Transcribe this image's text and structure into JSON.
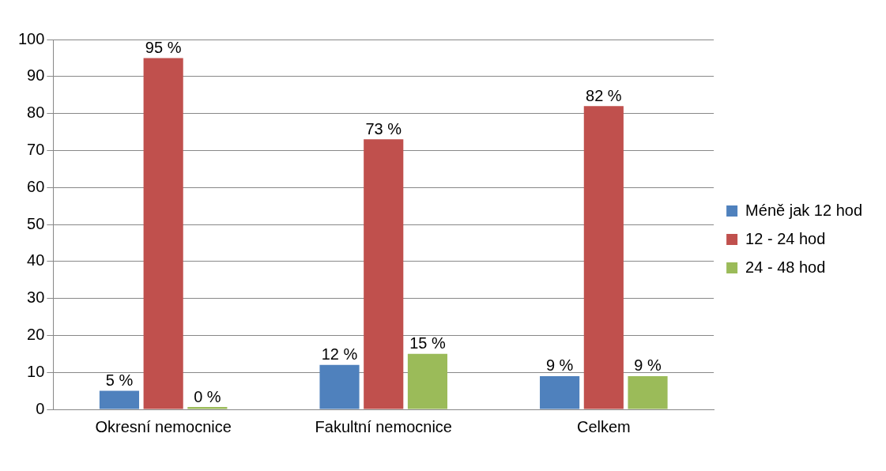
{
  "chart_data": {
    "type": "bar",
    "categories": [
      "Okresní nemocnice",
      "Fakultní nemocnice",
      "Celkem"
    ],
    "series": [
      {
        "name": "Méně jak 12 hod",
        "color": "#4f81bd",
        "values": [
          5,
          12,
          9
        ],
        "value_labels": [
          "5 %",
          "12 %",
          "9 %"
        ]
      },
      {
        "name": "12 - 24 hod",
        "color": "#c0504d",
        "values": [
          95,
          73,
          82
        ],
        "value_labels": [
          "95 %",
          "73 %",
          "82 %"
        ]
      },
      {
        "name": "24 - 48 hod",
        "color": "#9bbb59",
        "values": [
          0,
          15,
          9
        ],
        "value_labels": [
          "0 %",
          "15 %",
          "9 %"
        ]
      }
    ],
    "ylim": [
      0,
      100
    ],
    "yticks": [
      0,
      10,
      20,
      30,
      40,
      50,
      60,
      70,
      80,
      90,
      100
    ],
    "grid": "y",
    "legend": "right"
  }
}
